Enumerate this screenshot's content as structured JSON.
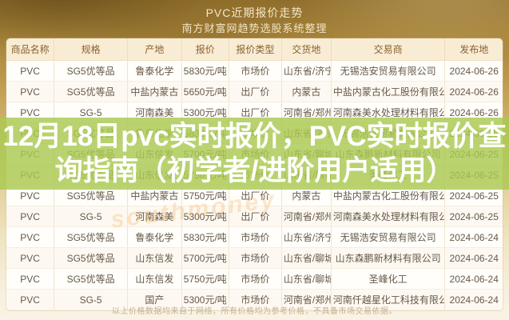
{
  "header": {
    "title": "PVC近期报价走势",
    "subtitle": "南方财富网趋势选股系统整理"
  },
  "overlay": {
    "line1": "12月18日pvc实时报价，PVC实时报价查",
    "line2": "询指南（初学者/进阶用户适用）"
  },
  "table": {
    "columns": [
      "商品名称",
      "规格",
      "产地",
      "报价",
      "报价类型",
      "交货地",
      "交易商",
      "发布地"
    ],
    "rows": [
      [
        "PVC",
        "SG5优等品",
        "鲁泰化学",
        "5830元/吨",
        "市场价",
        "山东省/济宁市",
        "无锡浩安贸易有限公司",
        "2024-06-26"
      ],
      [
        "PVC",
        "SG5优等品",
        "中盐内蒙古",
        "5650元/吨",
        "出厂价",
        "内蒙古",
        "中盐内蒙古化工股份有限公司",
        "2024-06-26"
      ],
      [
        "PVC",
        "SG-5",
        "河南森美",
        "5300元/吨",
        "出厂价",
        "河南省/郑州市",
        "河南森美水处理材料有限公司",
        "2024-06-26"
      ],
      [
        "PVC",
        "SG5优等品",
        "鲁泰化学",
        "5830元/吨",
        "市场价",
        "山东省/济宁市",
        "无锡浩安贸易有限公司",
        "2024-06-25"
      ],
      [
        "PVC",
        "SG5优等品",
        "山东信发",
        "5700元/吨",
        "市场价",
        "山东省/聊城市",
        "山东森鹏新材料有限公司",
        "2024-06-25"
      ],
      [
        "PVC",
        "SG5优等品",
        "山东信发",
        "5750元/吨",
        "市场价",
        "山东省/聊城市",
        "圣峰化工",
        "2024-06-25"
      ],
      [
        "PVC",
        "SG5优等品",
        "中盐内蒙古",
        "5750元/吨",
        "出厂价",
        "内蒙古",
        "中盐内蒙古化工股份有限公司",
        "2024-06-25"
      ],
      [
        "PVC",
        "SG-5",
        "河南森美",
        "5300元/吨",
        "出厂价",
        "河南省/郑州市",
        "河南森美水处理材料有限公司",
        "2024-06-25"
      ],
      [
        "PVC",
        "SG5优等品",
        "鲁泰化学",
        "5830元/吨",
        "市场价",
        "山东省/济宁市",
        "无锡浩安贸易有限公司",
        "2024-06-24"
      ],
      [
        "PVC",
        "SG5优等品",
        "山东信发",
        "5700元/吨",
        "市场价",
        "山东省/聊城市",
        "山东森鹏新材料有限公司",
        "2024-06-24"
      ],
      [
        "PVC",
        "SG5优等品",
        "山东信发",
        "5750元/吨",
        "市场价",
        "山东省/聊城市",
        "圣峰化工",
        "2024-06-24"
      ],
      [
        "PVC",
        "SG-5",
        "国产",
        "5300元/吨",
        "市场价",
        "河南省/郑州市",
        "河南仟越星化工科技有限公司",
        "2024-06-24"
      ]
    ]
  },
  "footer": {
    "disclaimer": "以上价格数据均来自于网络，所有价格均为参考价格，不具备市场交易依据。"
  },
  "watermark": "southmoney",
  "colors": {
    "header_gold": "#a27f37",
    "overlay_green": "#aac950",
    "table_header_bg": "#f9ecd5",
    "table_header_text": "#8a6230",
    "cell_text": "#665847",
    "watermark_orange": "#f5a642"
  }
}
